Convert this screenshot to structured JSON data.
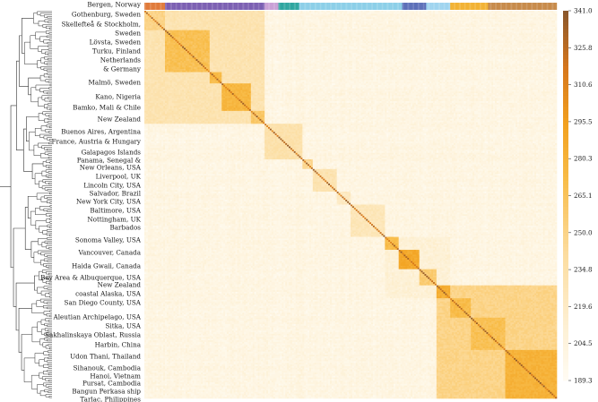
{
  "chart_data": {
    "type": "heatmap",
    "title": "",
    "row_labels": [
      "Bergen, Norway",
      "Gothenburg, Sweden",
      "Skellefteå & Stockholm,",
      "Sweden",
      "Lövsta, Sweden",
      "Turku, Finland",
      "Netherlands",
      "& Germany",
      "Malmö, Sweden",
      "Kano, Nigeria",
      "Bamko, Mali & Chile",
      "New Zealand",
      "Buenos Aires, Argentina",
      "France, Austria & Hungary",
      "Galapagos Islands",
      "Panama, Senegal &",
      "New Orleans, USA",
      "Liverpool, UK",
      "Lincoln City, USA",
      "Salvador, Brazil",
      "New York City, USA",
      "Baltimore, USA",
      "Nottingham, UK",
      "Barbados",
      "Sonoma Valley, USA",
      "Vancouver, Canada",
      "Haida Gwaii, Canada",
      "Bay Area & Albuquerque, USA",
      "New Zealand",
      "coastal Alaska, USA",
      "San Diego County, USA",
      "Aleutian Archipelago, USA",
      "Sitka, USA",
      "Sakhalinskaya Oblast, Russia",
      "Harbin, China",
      "Udon Thani, Thailand",
      "Sihanouk, Cambodia",
      "Hanoi, Vietnam",
      "Pursat, Cambodia",
      "Bangun Perkasa ship",
      "Tarlac, Philippines"
    ],
    "colorbar": {
      "min": 189.3,
      "max": 341.0,
      "ticks": [
        "341.0",
        "325.8",
        "310.6",
        "295.5",
        "280.3",
        "265.1",
        "250.0",
        "234.8",
        "219.6",
        "204.5",
        "189.3"
      ]
    },
    "clusters": [
      {
        "start": 0,
        "end": 12,
        "level": 0.4
      },
      {
        "start": 12,
        "end": 38,
        "level": 0.52
      },
      {
        "start": 38,
        "end": 45,
        "level": 0.55
      },
      {
        "start": 45,
        "end": 62,
        "level": 0.58
      },
      {
        "start": 62,
        "end": 70,
        "level": 0.48
      },
      {
        "start": 70,
        "end": 92,
        "level": 0.3
      },
      {
        "start": 92,
        "end": 98,
        "level": 0.38
      },
      {
        "start": 98,
        "end": 112,
        "level": 0.28
      },
      {
        "start": 112,
        "end": 120,
        "level": 0.22
      },
      {
        "start": 120,
        "end": 140,
        "level": 0.25
      },
      {
        "start": 140,
        "end": 148,
        "level": 0.55
      },
      {
        "start": 148,
        "end": 160,
        "level": 0.65
      },
      {
        "start": 160,
        "end": 170,
        "level": 0.45
      },
      {
        "start": 170,
        "end": 178,
        "level": 0.62
      },
      {
        "start": 178,
        "end": 190,
        "level": 0.55
      },
      {
        "start": 190,
        "end": 210,
        "level": 0.52
      },
      {
        "start": 210,
        "end": 240,
        "level": 0.6
      }
    ],
    "superblocks": [
      {
        "start": 0,
        "end": 70,
        "level": 0.28
      },
      {
        "start": 140,
        "end": 178,
        "level": 0.14
      },
      {
        "start": 170,
        "end": 240,
        "level": 0.4
      }
    ]
  }
}
